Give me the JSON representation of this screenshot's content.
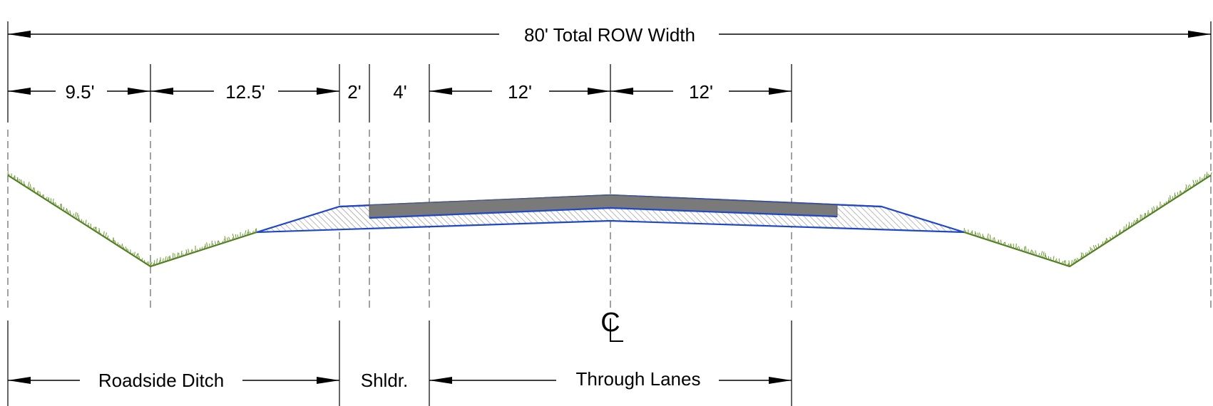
{
  "diagram": {
    "total_width_label": "80' Total ROW Width",
    "segment_dimensions": [
      "9.5'",
      "12.5'",
      "2'",
      "4'",
      "12'",
      "12'"
    ],
    "centerline_symbol": "CL",
    "zone_labels": {
      "ditch": "Roadside Ditch",
      "shoulder": "Shldr.",
      "lanes": "Through Lanes"
    },
    "colors": {
      "ground": "#4f7a22",
      "pavement_outline": "#1f47c8",
      "pavement_surface": "#7a7a7a",
      "dimension_lines": "#000000"
    }
  }
}
